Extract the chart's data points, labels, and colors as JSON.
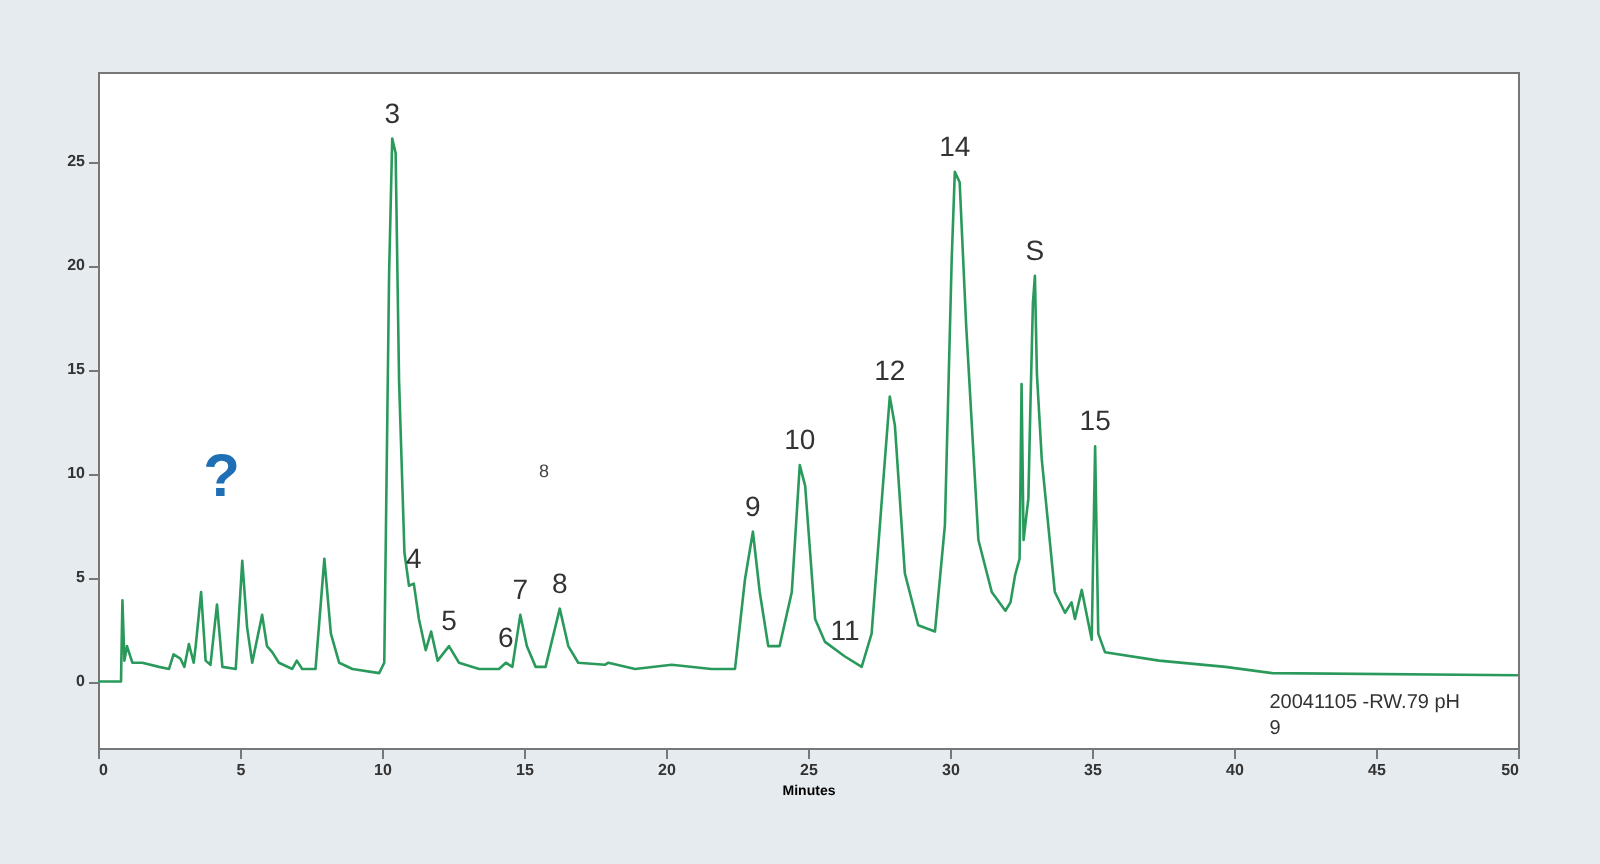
{
  "chart_data": {
    "type": "line",
    "xlabel": "Minutes",
    "x": [
      0,
      0.74,
      0.81,
      0.86,
      0.93,
      1.02,
      1.21,
      1.56,
      2.15,
      2.5,
      2.66,
      2.9,
      3.04,
      3.2,
      3.37,
      3.44,
      3.63,
      3.79,
      3.96,
      4.19,
      4.38,
      4.85,
      5.08,
      5.25,
      5.43,
      5.78,
      5.95,
      6.14,
      6.37,
      6.84,
      7.0,
      7.19,
      7.66,
      7.97,
      8.2,
      8.49,
      8.96,
      9.9,
      10.08,
      10.25,
      10.36,
      10.48,
      10.6,
      10.79,
      10.95,
      11.12,
      11.3,
      11.54,
      11.73,
      11.96,
      12.36,
      12.71,
      13.42,
      14.12,
      14.36,
      14.59,
      14.87,
      15.1,
      15.41,
      15.76,
      16.26,
      16.56,
      16.91,
      17.85,
      17.97,
      18.91,
      20.2,
      21.6,
      22.43,
      22.78,
      23.06,
      23.3,
      23.6,
      24.0,
      24.43,
      24.71,
      24.9,
      25.25,
      25.6,
      26.3,
      26.89,
      27.24,
      27.71,
      27.88,
      28.06,
      28.41,
      28.88,
      29.47,
      29.82,
      30.06,
      30.17,
      30.34,
      30.57,
      31.0,
      31.47,
      31.95,
      32.13,
      32.29,
      32.45,
      32.52,
      32.59,
      32.76,
      32.83,
      32.92,
      32.99,
      33.06,
      33.23,
      33.46,
      33.69,
      34.05,
      34.28,
      34.4,
      34.64,
      34.8,
      34.99,
      35.11,
      35.22,
      35.46,
      37.36,
      39.7,
      41.35,
      50
    ],
    "series": [
      {
        "color": "#2a9a5c",
        "values": [
          0,
          0,
          0,
          3.9,
          1.0,
          1.7,
          0.9,
          0.9,
          0.7,
          0.6,
          1.3,
          1.1,
          0.7,
          1.8,
          0.9,
          1.7,
          4.3,
          1.0,
          0.8,
          3.7,
          0.7,
          0.6,
          5.8,
          2.6,
          0.9,
          3.2,
          1.7,
          1.4,
          0.9,
          0.6,
          1.0,
          0.6,
          0.6,
          5.9,
          2.3,
          0.9,
          0.6,
          0.4,
          0.9,
          19.6,
          26.1,
          25.4,
          14.5,
          6.2,
          4.6,
          4.7,
          3.0,
          1.5,
          2.4,
          1.0,
          1.7,
          0.9,
          0.6,
          0.6,
          0.9,
          0.7,
          3.2,
          1.7,
          0.7,
          0.7,
          3.5,
          1.7,
          0.9,
          0.8,
          0.9,
          0.6,
          0.8,
          0.6,
          0.6,
          4.9,
          7.2,
          4.3,
          1.7,
          1.7,
          4.3,
          10.4,
          9.4,
          3.0,
          1.9,
          1.2,
          0.7,
          2.3,
          10.7,
          13.7,
          12.3,
          5.2,
          2.7,
          2.4,
          7.5,
          20.3,
          24.5,
          24.0,
          17.1,
          6.8,
          4.3,
          3.4,
          3.8,
          5.1,
          5.9,
          14.3,
          6.8,
          8.8,
          13.2,
          18.2,
          19.5,
          14.8,
          10.7,
          7.5,
          4.3,
          3.3,
          3.8,
          3.0,
          4.4,
          3.3,
          2.0,
          11.3,
          2.3,
          1.4,
          1.0,
          0.7,
          0.4,
          0.3
        ]
      }
    ],
    "xlim": [
      0,
      50
    ],
    "xticks": [
      0,
      5,
      10,
      15,
      20,
      25,
      30,
      35,
      40,
      45,
      50
    ],
    "ylim": [
      -3.2,
      29.3
    ],
    "yticks": [
      0,
      5,
      10,
      15,
      20,
      25
    ],
    "grid": false,
    "marker": "none",
    "line_style": "solid",
    "annotations": [
      "?",
      {
        "text": "3",
        "x": 10.36,
        "y": 26.1
      },
      {
        "text": "4",
        "x": 11.12,
        "y": 4.7
      },
      {
        "text": "5",
        "x": 12.36,
        "y": 1.7
      },
      {
        "text": "6",
        "x": 14.36,
        "y": 0.9
      },
      {
        "text": "7",
        "x": 14.87,
        "y": 3.2
      },
      {
        "text": "8",
        "x": 16.26,
        "y": 3.5
      },
      "8",
      {
        "text": "9",
        "x": 23.06,
        "y": 7.2
      },
      {
        "text": "10",
        "x": 24.71,
        "y": 10.4
      },
      {
        "text": "11",
        "x": 26.3,
        "y": 1.2
      },
      {
        "text": "12",
        "x": 27.88,
        "y": 13.7
      },
      {
        "text": "14",
        "x": 30.17,
        "y": 24.5
      },
      {
        "text": "S",
        "x": 32.99,
        "y": 19.5
      },
      {
        "text": "15",
        "x": 35.11,
        "y": 11.3
      },
      "20041105 -RW.79 pH 9"
    ]
  }
}
